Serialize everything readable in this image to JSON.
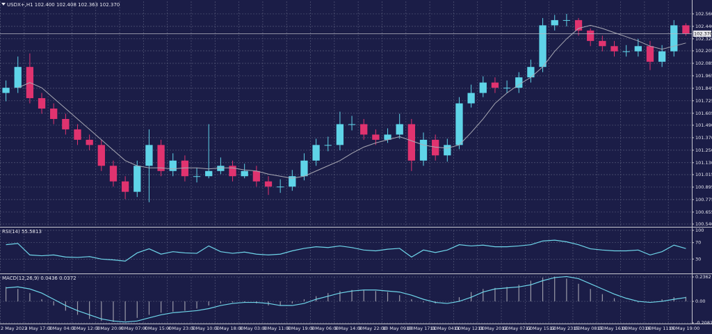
{
  "chart_data": [
    {
      "type": "candlestick",
      "title": "USDX+,H1 102.400 102.408 102.363 102.370",
      "categories": [
        "2 May 2023",
        null,
        "2 May 17:00",
        null,
        "3 May 04:00",
        null,
        "3 May 12:00",
        null,
        "3 May 20:00",
        null,
        "4 May 07:00",
        null,
        "4 May 15:00",
        null,
        "4 May 23:00",
        null,
        "5 May 10:00",
        null,
        "5 May 18:00",
        null,
        "8 May 03:00",
        null,
        "8 May 11:00",
        null,
        "8 May 19:00",
        null,
        "9 May 06:00",
        null,
        "9 May 14:00",
        null,
        "9 May 22:00",
        null,
        "10 May 09:00",
        null,
        "10 May 17:00",
        null,
        "11 May 04:00",
        null,
        "11 May 12:00",
        null,
        "11 May 20:00",
        null,
        "12 May 07:00",
        null,
        "12 May 15:00",
        null,
        "12 May 23:00",
        null,
        "15 May 08:00",
        null,
        "15 May 16:00",
        null,
        "16 May 03:00",
        null,
        "16 May 11:00",
        null,
        "16 May 19:00",
        null
      ],
      "open": [
        101.8,
        101.85,
        102.05,
        101.75,
        101.65,
        101.55,
        101.45,
        101.35,
        101.3,
        101.1,
        100.95,
        100.85,
        101.1,
        101.3,
        101.05,
        101.15,
        101.0,
        101.0,
        101.05,
        101.1,
        101.0,
        101.05,
        100.95,
        100.9,
        100.9,
        101.0,
        101.15,
        101.3,
        101.3,
        101.5,
        101.5,
        101.4,
        101.35,
        101.4,
        101.5,
        101.15,
        101.35,
        101.2,
        101.3,
        101.7,
        101.8,
        101.9,
        101.85,
        101.85,
        101.95,
        102.05,
        102.45,
        102.5,
        102.5,
        102.4,
        102.3,
        102.25,
        102.2,
        102.2,
        102.25,
        102.1,
        102.2,
        102.45
      ],
      "high": [
        101.92,
        102.15,
        102.18,
        101.8,
        101.7,
        101.6,
        101.5,
        101.4,
        101.35,
        101.15,
        101.0,
        101.15,
        101.45,
        101.35,
        101.22,
        101.2,
        101.08,
        101.5,
        101.18,
        101.15,
        101.12,
        101.1,
        101.0,
        100.97,
        101.06,
        101.22,
        101.36,
        101.38,
        101.62,
        101.58,
        101.55,
        101.45,
        101.46,
        101.6,
        101.55,
        101.42,
        101.4,
        101.36,
        101.76,
        101.88,
        101.96,
        101.95,
        101.92,
        102.0,
        102.12,
        102.52,
        102.55,
        102.56,
        102.52,
        102.42,
        102.35,
        102.3,
        102.26,
        102.32,
        102.3,
        102.26,
        102.5,
        102.47
      ],
      "low": [
        101.72,
        101.8,
        101.7,
        101.6,
        101.5,
        101.4,
        101.3,
        101.25,
        101.05,
        100.9,
        100.78,
        100.8,
        100.75,
        101.0,
        101.0,
        100.95,
        100.94,
        100.98,
        101.02,
        100.95,
        100.98,
        100.9,
        100.82,
        100.84,
        100.86,
        100.96,
        101.1,
        101.24,
        101.25,
        101.44,
        101.35,
        101.3,
        101.32,
        101.36,
        101.05,
        101.1,
        101.15,
        101.14,
        101.26,
        101.66,
        101.76,
        101.8,
        101.8,
        101.8,
        101.9,
        102.0,
        102.4,
        102.44,
        102.35,
        102.25,
        102.2,
        102.15,
        102.15,
        102.15,
        102.02,
        102.05,
        102.15,
        102.35
      ],
      "close": [
        101.85,
        102.05,
        101.75,
        101.65,
        101.55,
        101.45,
        101.35,
        101.3,
        101.1,
        100.95,
        100.85,
        101.1,
        101.3,
        101.05,
        101.15,
        101.0,
        101.0,
        101.05,
        101.1,
        101.0,
        101.05,
        100.95,
        100.9,
        100.9,
        101.0,
        101.15,
        101.3,
        101.3,
        101.5,
        101.5,
        101.4,
        101.35,
        101.4,
        101.5,
        101.15,
        101.35,
        101.2,
        101.3,
        101.7,
        101.8,
        101.9,
        101.85,
        101.85,
        101.95,
        102.05,
        102.45,
        102.5,
        102.5,
        102.4,
        102.3,
        102.25,
        102.2,
        102.2,
        102.25,
        102.1,
        102.2,
        102.45,
        102.37
      ],
      "up_color": "#5fd4e8",
      "down_color": "#e0336f",
      "ma": {
        "color": "#a9a9b4",
        "values": [
          null,
          101.85,
          101.9,
          101.85,
          101.75,
          101.65,
          101.55,
          101.45,
          101.35,
          101.25,
          101.15,
          101.1,
          101.08,
          101.08,
          101.07,
          101.08,
          101.08,
          101.07,
          101.08,
          101.08,
          101.06,
          101.05,
          101.02,
          101.0,
          100.98,
          101.0,
          101.05,
          101.1,
          101.15,
          101.22,
          101.28,
          101.32,
          101.35,
          101.38,
          101.34,
          101.3,
          101.28,
          101.27,
          101.3,
          101.42,
          101.55,
          101.7,
          101.8,
          101.88,
          101.95,
          102.05,
          102.2,
          102.32,
          102.42,
          102.45,
          102.42,
          102.38,
          102.34,
          102.3,
          102.25,
          102.22,
          102.25,
          102.28
        ]
      },
      "last_price": {
        "value": 102.37,
        "label": "102.370"
      },
      "ylim": [
        100.52,
        102.68
      ],
      "yticks": [
        {
          "value": 102.56,
          "label": "102.560"
        },
        {
          "value": 102.44,
          "label": "102.440"
        },
        {
          "value": 102.32,
          "label": "102.320"
        },
        102.205,
        102.085,
        101.965,
        101.845,
        101.725,
        101.605,
        {
          "value": 101.49,
          "label": "101.490"
        },
        {
          "value": 101.37,
          "label": "101.370"
        },
        {
          "value": 101.25,
          "label": "101.250"
        },
        {
          "value": 101.13,
          "label": "101.130"
        },
        101.015,
        100.895,
        100.775,
        100.655,
        {
          "value": 100.54,
          "label": "100.540"
        }
      ],
      "grid": true
    },
    {
      "type": "line",
      "title": "RSI(14) 55.5813",
      "values": [
        65,
        68,
        40,
        38,
        40,
        35,
        34,
        36,
        30,
        28,
        25,
        45,
        55,
        42,
        48,
        45,
        44,
        62,
        48,
        44,
        47,
        42,
        40,
        42,
        50,
        56,
        60,
        58,
        62,
        58,
        52,
        50,
        54,
        56,
        35,
        52,
        46,
        52,
        65,
        62,
        64,
        60,
        60,
        62,
        65,
        74,
        76,
        72,
        65,
        55,
        52,
        50,
        50,
        52,
        40,
        48,
        64,
        55.58
      ],
      "color": "#6fd6ea",
      "ylim": [
        0,
        100
      ],
      "yticks": [
        100,
        70,
        30
      ],
      "grid": true
    },
    {
      "type": "macd",
      "title": "MACD(12,26,9) 0.0436 0.0372",
      "histogram": [
        0.14,
        0.12,
        0.08,
        0.02,
        -0.04,
        -0.09,
        -0.13,
        -0.17,
        -0.19,
        -0.2,
        -0.19,
        -0.16,
        -0.13,
        -0.11,
        -0.1,
        -0.09,
        -0.07,
        -0.04,
        -0.02,
        -0.01,
        -0.01,
        -0.02,
        -0.04,
        -0.04,
        -0.02,
        0.02,
        0.05,
        0.08,
        0.1,
        0.11,
        0.11,
        0.1,
        0.09,
        0.06,
        0.02,
        -0.01,
        -0.02,
        0.0,
        0.04,
        0.09,
        0.12,
        0.13,
        0.14,
        0.16,
        0.2,
        0.23,
        0.24,
        0.22,
        0.17,
        0.12,
        0.07,
        0.03,
        0.0,
        -0.01,
        0.0,
        0.02,
        0.04,
        0.0436
      ],
      "signal": [
        0.13,
        0.14,
        0.12,
        0.08,
        0.02,
        -0.04,
        -0.09,
        -0.13,
        -0.17,
        -0.19,
        -0.2,
        -0.19,
        -0.16,
        -0.13,
        -0.11,
        -0.1,
        -0.09,
        -0.07,
        -0.04,
        -0.02,
        -0.01,
        -0.01,
        -0.02,
        -0.04,
        -0.04,
        -0.02,
        0.02,
        0.05,
        0.08,
        0.1,
        0.11,
        0.11,
        0.1,
        0.09,
        0.06,
        0.02,
        -0.01,
        -0.02,
        0.0,
        0.04,
        0.09,
        0.12,
        0.13,
        0.14,
        0.16,
        0.2,
        0.23,
        0.24,
        0.22,
        0.17,
        0.12,
        0.07,
        0.03,
        0.0,
        -0.01,
        0.0,
        0.02,
        0.0372
      ],
      "hist_color": "#9a9aa8",
      "signal_color": "#6fd6ea",
      "ylim": [
        -0.2081,
        0.2362
      ],
      "yticks": [
        0.2362,
        {
          "value": 0,
          "label": "0.00"
        },
        -0.2081
      ],
      "grid": true
    }
  ]
}
